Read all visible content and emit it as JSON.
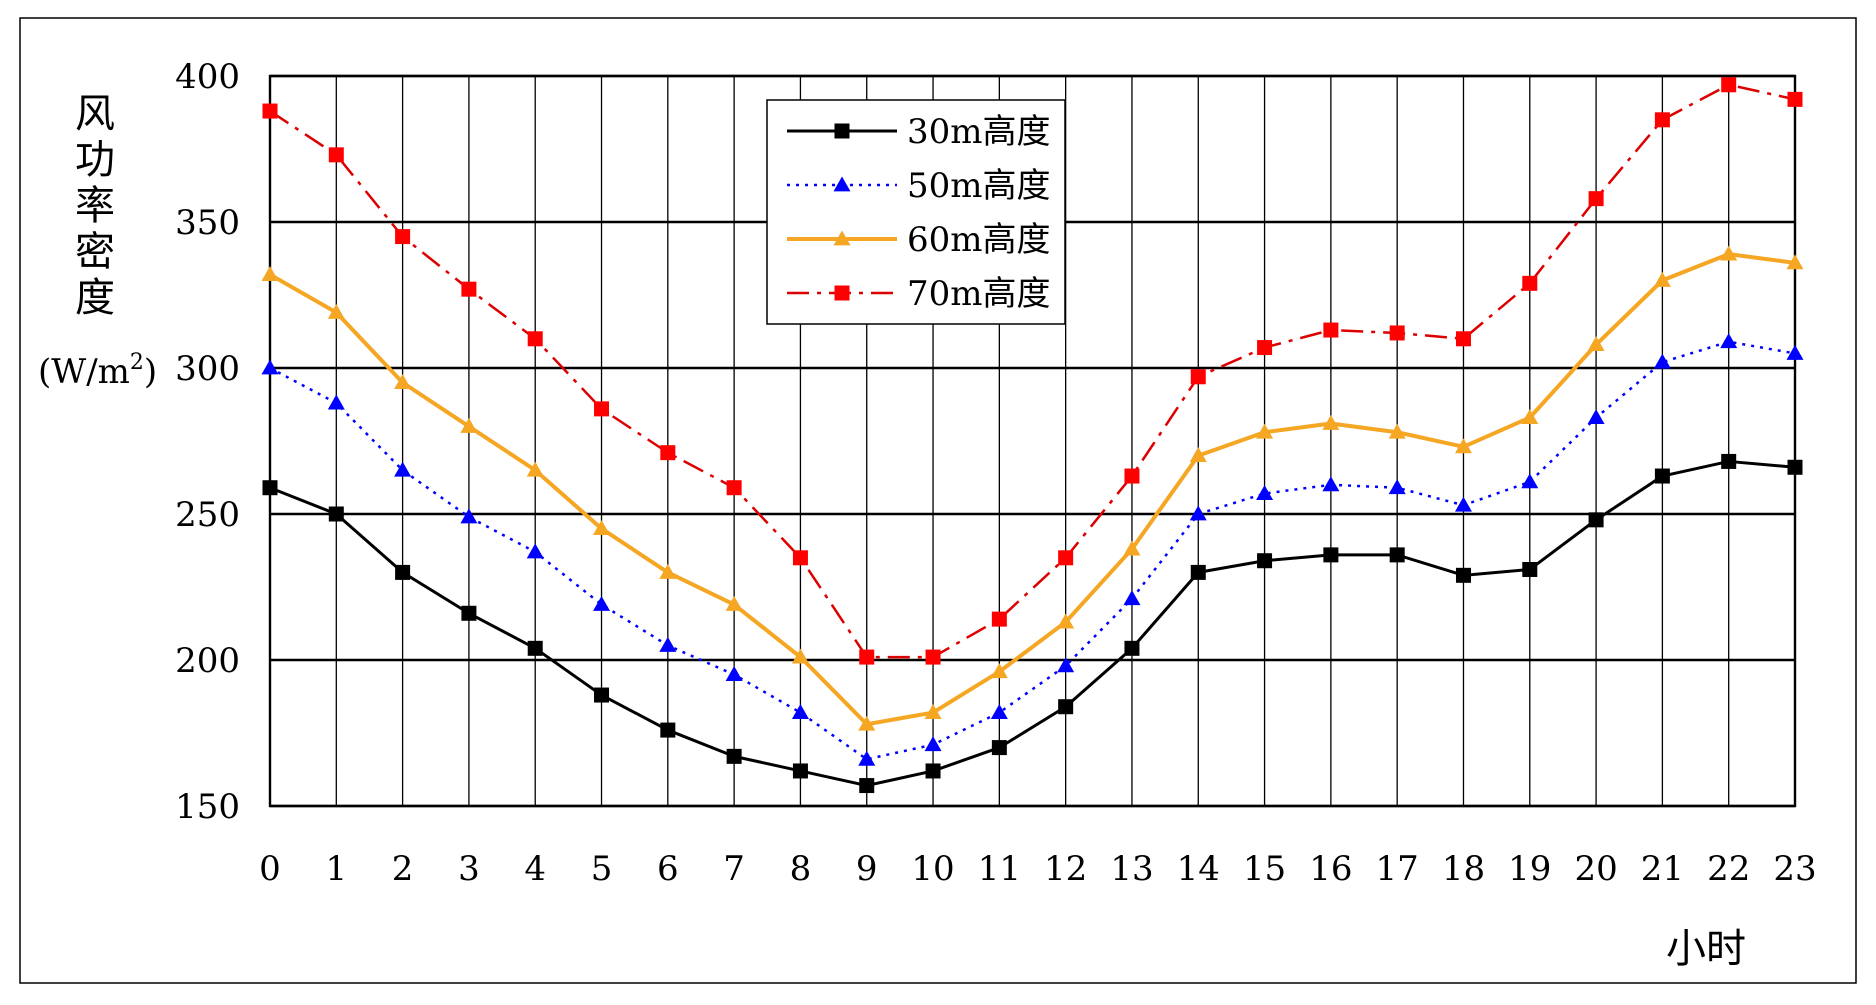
{
  "chart_data": {
    "type": "line",
    "title": "",
    "xlabel": "小时",
    "ylabel_chars": [
      "风",
      "功",
      "率",
      "密",
      "度"
    ],
    "ylabel_unit": "(W/m",
    "ylabel_unit_sup": "2",
    "ylabel_unit_close": ")",
    "x": [
      0,
      1,
      2,
      3,
      4,
      5,
      6,
      7,
      8,
      9,
      10,
      11,
      12,
      13,
      14,
      15,
      16,
      17,
      18,
      19,
      20,
      21,
      22,
      23
    ],
    "x_tick_labels": [
      "0",
      "1",
      "2",
      "3",
      "4",
      "5",
      "6",
      "7",
      "8",
      "9",
      "10",
      "11",
      "12",
      "13",
      "14",
      "15",
      "16",
      "17",
      "18",
      "19",
      "20",
      "21",
      "22",
      "23"
    ],
    "ylim": [
      150,
      400
    ],
    "y_ticks": [
      150,
      200,
      250,
      300,
      350,
      400
    ],
    "y_tick_labels": [
      "150",
      "200",
      "250",
      "300",
      "350",
      "400"
    ],
    "grid": true,
    "legend_position": "top-center",
    "series": [
      {
        "name": "30m高度",
        "color": "#000000",
        "marker": "square",
        "line_style": "solid",
        "values": [
          259,
          250,
          230,
          216,
          204,
          188,
          176,
          167,
          162,
          157,
          162,
          170,
          184,
          204,
          230,
          234,
          236,
          236,
          229,
          231,
          248,
          263,
          268,
          266
        ]
      },
      {
        "name": "50m高度",
        "color": "#0000ff",
        "marker_color": "#0000ff",
        "marker": "triangle",
        "line_style": "dotted",
        "values": [
          300,
          288,
          265,
          249,
          237,
          219,
          205,
          195,
          182,
          166,
          171,
          182,
          198,
          221,
          250,
          257,
          260,
          259,
          253,
          261,
          283,
          302,
          309,
          305
        ]
      },
      {
        "name": "60m高度",
        "color": "#f5a623",
        "marker": "triangle",
        "line_style": "solid",
        "values": [
          332,
          319,
          295,
          280,
          265,
          245,
          230,
          219,
          201,
          178,
          182,
          196,
          213,
          238,
          270,
          278,
          281,
          278,
          273,
          283,
          308,
          330,
          339,
          336
        ]
      },
      {
        "name": "70m高度",
        "color": "#dd0000",
        "marker_color": "#ff0000",
        "marker": "square",
        "line_style": "dashdot",
        "values": [
          388,
          373,
          345,
          327,
          310,
          286,
          271,
          259,
          235,
          201,
          201,
          214,
          235,
          263,
          297,
          307,
          313,
          312,
          310,
          329,
          358,
          385,
          397,
          392
        ]
      }
    ]
  }
}
